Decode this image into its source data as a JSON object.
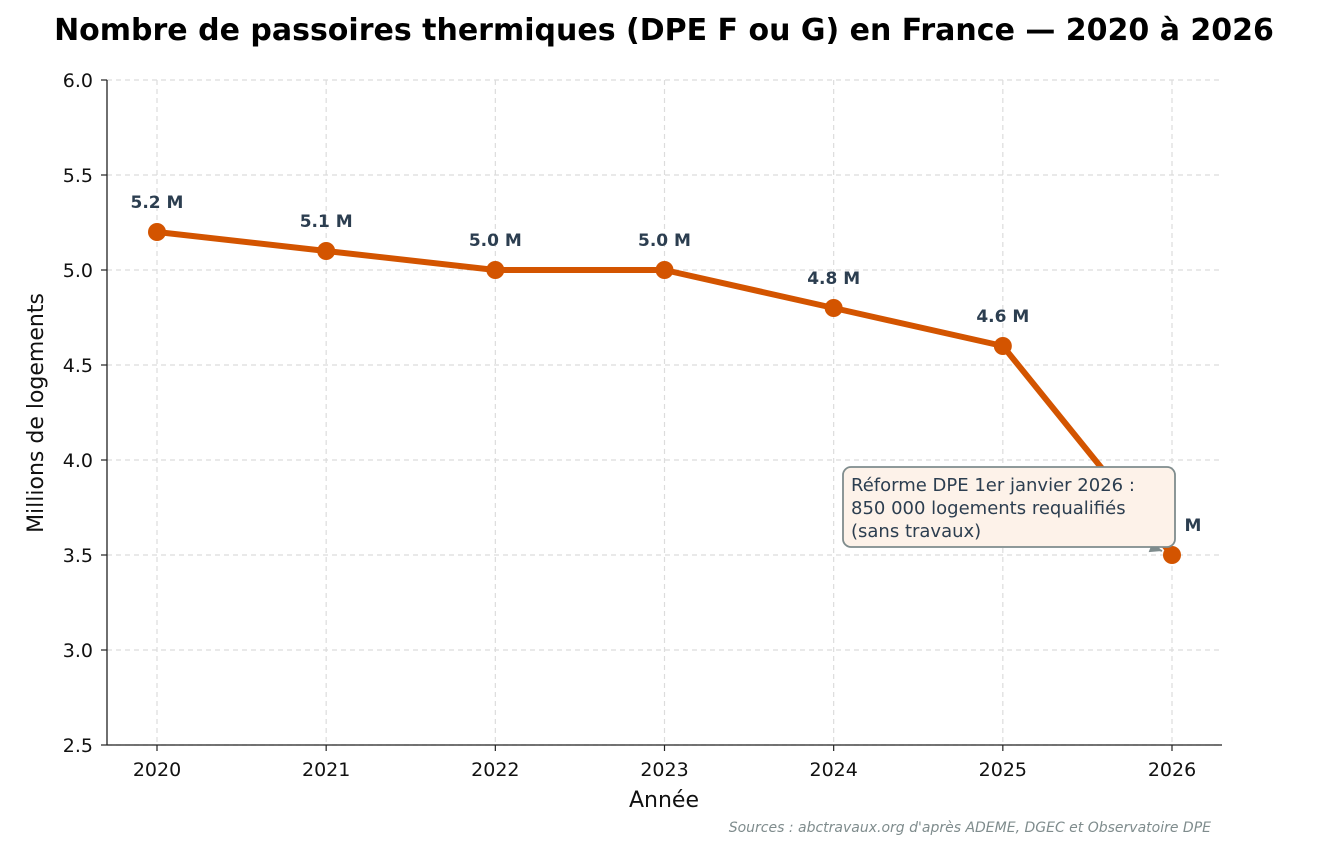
{
  "chart_data": {
    "type": "line",
    "title": "Nombre de passoires thermiques (DPE F ou G) en France — 2020 à 2026",
    "xlabel": "Année",
    "ylabel": "Millions de logements",
    "x": [
      2020,
      2021,
      2022,
      2023,
      2024,
      2025,
      2026
    ],
    "series": [
      {
        "values": [
          5.2,
          5.1,
          5.0,
          5.0,
          4.8,
          4.6,
          3.5
        ]
      }
    ],
    "data_labels": [
      "5.2 M",
      "5.1 M",
      "5.0 M",
      "5.0 M",
      "4.8 M",
      "4.6 M",
      "M"
    ],
    "ylim": [
      2.5,
      6.0
    ],
    "yticks": [
      2.5,
      3.0,
      3.5,
      4.0,
      4.5,
      5.0,
      5.5,
      6.0
    ],
    "ytick_labels": [
      "2.5",
      "3.0",
      "3.5",
      "4.0",
      "4.5",
      "5.0",
      "5.5",
      "6.0"
    ],
    "xtick_labels": [
      "2020",
      "2021",
      "2022",
      "2023",
      "2024",
      "2025",
      "2026"
    ],
    "grid": true,
    "line_color": "#d35400",
    "annotation": {
      "lines": [
        "Réforme DPE 1er janvier 2026 :",
        "850 000 logements requalifiés",
        "(sans travaux)"
      ],
      "target_x": 2026,
      "target_y": 3.5,
      "box_color": "#fdf2e9",
      "border_color": "#7f8c8d"
    },
    "source": "Sources : abctravaux.org d'après ADEME, DGEC et Observatoire DPE"
  }
}
